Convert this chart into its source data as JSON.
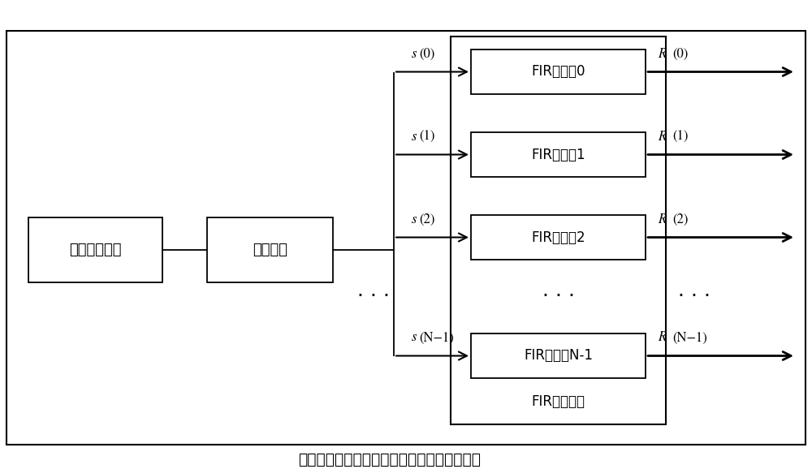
{
  "background_color": "#ffffff",
  "border_color": "#000000",
  "title": "线性调频信号自相关运算的精确高效实现装置",
  "title_fontsize": 13.5,
  "box1_label": "采样量化单元",
  "box2_label": "缓存单元",
  "fir_labels": [
    "FIR滤波器0",
    "FIR滤波器1",
    "FIR滤波器2",
    "FIR滤波器N-1"
  ],
  "fir_group_label": "FIR滤波器组",
  "input_labels_italic": [
    "s",
    "s",
    "s",
    "s"
  ],
  "input_parens": [
    "(0)",
    "(1)",
    "(2)",
    "(N−1)"
  ],
  "output_labels_italic": [
    "R",
    "R",
    "R",
    "R"
  ],
  "output_parens": [
    "(0)",
    "(1)",
    "(2)",
    "(N−1)"
  ],
  "font_size_box": 13,
  "font_size_label": 12,
  "font_size_fir": 12,
  "font_size_dots": 18
}
